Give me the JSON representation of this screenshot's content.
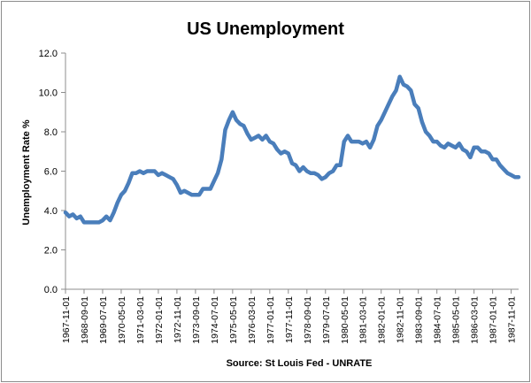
{
  "chart_data": {
    "type": "line",
    "title": "US Unemployment",
    "xlabel": "Source: St Louis Fed - UNRATE",
    "ylabel": "Unemployment Rate %",
    "ylim": [
      0,
      12
    ],
    "yticks": [
      "0.0",
      "2.0",
      "4.0",
      "6.0",
      "8.0",
      "10.0",
      "12.0"
    ],
    "grid": "none",
    "legend": "none",
    "series_color": "#4a7ebb",
    "x_ticks": [
      "1967-11-01",
      "1968-09-01",
      "1969-07-01",
      "1970-05-01",
      "1971-03-01",
      "1972-01-01",
      "1972-11-01",
      "1973-09-01",
      "1974-07-01",
      "1975-05-01",
      "1976-03-01",
      "1977-01-01",
      "1977-11-01",
      "1978-09-01",
      "1979-07-01",
      "1980-05-01",
      "1981-03-01",
      "1982-01-01",
      "1982-11-01",
      "1983-09-01",
      "1984-07-01",
      "1985-05-01",
      "1986-03-01",
      "1987-01-01",
      "1987-11-01"
    ],
    "x": [
      "1967-11-01",
      "1968-01-01",
      "1968-03-01",
      "1968-05-01",
      "1968-07-01",
      "1968-09-01",
      "1968-11-01",
      "1969-01-01",
      "1969-03-01",
      "1969-05-01",
      "1969-07-01",
      "1969-09-01",
      "1969-11-01",
      "1970-01-01",
      "1970-03-01",
      "1970-05-01",
      "1970-07-01",
      "1970-09-01",
      "1970-11-01",
      "1971-01-01",
      "1971-03-01",
      "1971-05-01",
      "1971-07-01",
      "1971-09-01",
      "1971-11-01",
      "1972-01-01",
      "1972-03-01",
      "1972-05-01",
      "1972-07-01",
      "1972-09-01",
      "1972-11-01",
      "1973-01-01",
      "1973-03-01",
      "1973-05-01",
      "1973-07-01",
      "1973-09-01",
      "1973-11-01",
      "1974-01-01",
      "1974-03-01",
      "1974-05-01",
      "1974-07-01",
      "1974-09-01",
      "1974-11-01",
      "1975-01-01",
      "1975-03-01",
      "1975-05-01",
      "1975-07-01",
      "1975-09-01",
      "1975-11-01",
      "1976-01-01",
      "1976-03-01",
      "1976-05-01",
      "1976-07-01",
      "1976-09-01",
      "1976-11-01",
      "1977-01-01",
      "1977-03-01",
      "1977-05-01",
      "1977-07-01",
      "1977-09-01",
      "1977-11-01",
      "1978-01-01",
      "1978-03-01",
      "1978-05-01",
      "1978-07-01",
      "1978-09-01",
      "1978-11-01",
      "1979-01-01",
      "1979-03-01",
      "1979-05-01",
      "1979-07-01",
      "1979-09-01",
      "1979-11-01",
      "1980-01-01",
      "1980-03-01",
      "1980-05-01",
      "1980-07-01",
      "1980-09-01",
      "1980-11-01",
      "1981-01-01",
      "1981-03-01",
      "1981-05-01",
      "1981-07-01",
      "1981-09-01",
      "1981-11-01",
      "1982-01-01",
      "1982-03-01",
      "1982-05-01",
      "1982-07-01",
      "1982-09-01",
      "1982-11-01",
      "1983-01-01",
      "1983-03-01",
      "1983-05-01",
      "1983-07-01",
      "1983-09-01",
      "1983-11-01",
      "1984-01-01",
      "1984-03-01",
      "1984-05-01",
      "1984-07-01",
      "1984-09-01",
      "1984-11-01",
      "1985-01-01",
      "1985-03-01",
      "1985-05-01",
      "1985-07-01",
      "1985-09-01",
      "1985-11-01",
      "1986-01-01",
      "1986-03-01",
      "1986-05-01",
      "1986-07-01",
      "1986-09-01",
      "1986-11-01",
      "1987-01-01",
      "1987-03-01",
      "1987-05-01",
      "1987-07-01",
      "1987-09-01",
      "1987-11-01",
      "1988-01-01",
      "1988-03-01"
    ],
    "series": [
      {
        "values": [
          3.9,
          3.7,
          3.8,
          3.6,
          3.7,
          3.4,
          3.4,
          3.4,
          3.4,
          3.4,
          3.5,
          3.7,
          3.5,
          3.9,
          4.4,
          4.8,
          5.0,
          5.4,
          5.9,
          5.9,
          6.0,
          5.9,
          6.0,
          6.0,
          6.0,
          5.8,
          5.9,
          5.8,
          5.7,
          5.6,
          5.3,
          4.9,
          5.0,
          4.9,
          4.8,
          4.8,
          4.8,
          5.1,
          5.1,
          5.1,
          5.5,
          5.9,
          6.6,
          8.1,
          8.6,
          9.0,
          8.6,
          8.4,
          8.3,
          7.9,
          7.6,
          7.7,
          7.8,
          7.6,
          7.8,
          7.5,
          7.4,
          7.1,
          6.9,
          7.0,
          6.9,
          6.4,
          6.3,
          6.0,
          6.2,
          6.0,
          5.9,
          5.9,
          5.8,
          5.6,
          5.7,
          5.9,
          6.0,
          6.3,
          6.3,
          7.5,
          7.8,
          7.5,
          7.5,
          7.5,
          7.4,
          7.5,
          7.2,
          7.6,
          8.3,
          8.6,
          9.0,
          9.4,
          9.8,
          10.1,
          10.8,
          10.4,
          10.3,
          10.1,
          9.4,
          9.2,
          8.5,
          8.0,
          7.8,
          7.5,
          7.5,
          7.3,
          7.2,
          7.4,
          7.3,
          7.2,
          7.4,
          7.1,
          7.0,
          6.7,
          7.2,
          7.2,
          7.0,
          7.0,
          6.9,
          6.6,
          6.6,
          6.3,
          6.1,
          5.9,
          5.8,
          5.7,
          5.7
        ]
      }
    ]
  }
}
